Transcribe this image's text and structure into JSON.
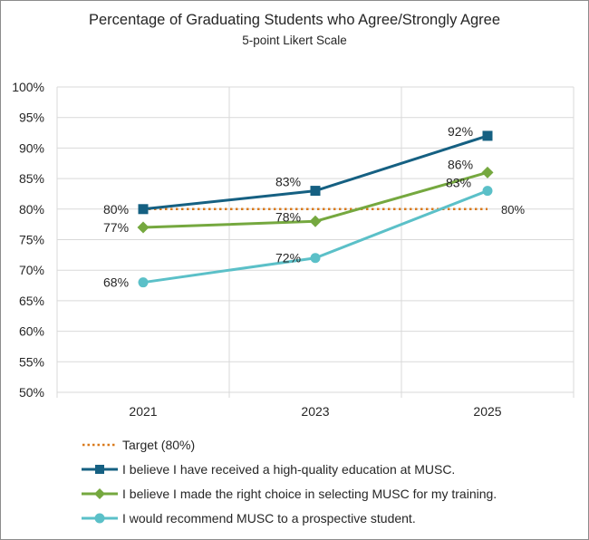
{
  "chart_data": {
    "type": "line",
    "title": "Percentage of Graduating Students who Agree/Strongly Agree",
    "subtitle": "5-point Likert Scale",
    "categories": [
      "2021",
      "2023",
      "2025"
    ],
    "ylim": [
      50,
      100
    ],
    "yticks": [
      "50%",
      "55%",
      "60%",
      "65%",
      "70%",
      "75%",
      "80%",
      "85%",
      "90%",
      "95%",
      "100%"
    ],
    "ytick_values": [
      50,
      55,
      60,
      65,
      70,
      75,
      80,
      85,
      90,
      95,
      100
    ],
    "grid": true,
    "legend_position": "bottom",
    "target": {
      "name": "Target (80%)",
      "value": 80,
      "label": "80%",
      "color": "#D97A1C",
      "style": "dotted"
    },
    "series": [
      {
        "name": "I believe I have received a high-quality education at MUSC.",
        "values": [
          80,
          83,
          92
        ],
        "labels": [
          "80%",
          "83%",
          "92%"
        ],
        "color": "#156082",
        "marker": "square"
      },
      {
        "name": "I believe I made the right choice in selecting MUSC for my training.",
        "values": [
          77,
          78,
          86
        ],
        "labels": [
          "77%",
          "78%",
          "86%"
        ],
        "color": "#75A83F",
        "marker": "diamond"
      },
      {
        "name": "I would recommend MUSC to a prospective student.",
        "values": [
          68,
          72,
          83
        ],
        "labels": [
          "68%",
          "72%",
          "83%"
        ],
        "color": "#5BC0C8",
        "marker": "circle"
      }
    ]
  }
}
